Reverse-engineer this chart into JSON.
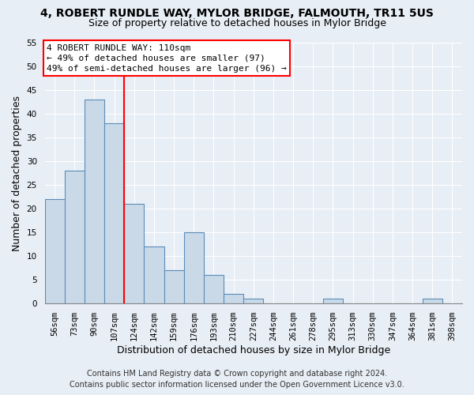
{
  "title": "4, ROBERT RUNDLE WAY, MYLOR BRIDGE, FALMOUTH, TR11 5US",
  "subtitle": "Size of property relative to detached houses in Mylor Bridge",
  "xlabel": "Distribution of detached houses by size in Mylor Bridge",
  "ylabel": "Number of detached properties",
  "categories": [
    "56sqm",
    "73sqm",
    "90sqm",
    "107sqm",
    "124sqm",
    "142sqm",
    "159sqm",
    "176sqm",
    "193sqm",
    "210sqm",
    "227sqm",
    "244sqm",
    "261sqm",
    "278sqm",
    "295sqm",
    "313sqm",
    "330sqm",
    "347sqm",
    "364sqm",
    "381sqm",
    "398sqm"
  ],
  "values": [
    22,
    28,
    43,
    38,
    21,
    12,
    7,
    15,
    6,
    2,
    1,
    0,
    0,
    0,
    1,
    0,
    0,
    0,
    0,
    1,
    0
  ],
  "bar_color": "#c9d9e8",
  "bar_edge_color": "#5b8db8",
  "annotation_title": "4 ROBERT RUNDLE WAY: 110sqm",
  "annotation_line1": "← 49% of detached houses are smaller (97)",
  "annotation_line2": "49% of semi-detached houses are larger (96) →",
  "ylim": [
    0,
    55
  ],
  "yticks": [
    0,
    5,
    10,
    15,
    20,
    25,
    30,
    35,
    40,
    45,
    50,
    55
  ],
  "footer1": "Contains HM Land Registry data © Crown copyright and database right 2024.",
  "footer2": "Contains public sector information licensed under the Open Government Licence v3.0.",
  "bg_color": "#e8eef5",
  "plot_bg_color": "#e8eef5",
  "grid_color": "#ffffff",
  "title_fontsize": 10,
  "subtitle_fontsize": 9,
  "axis_label_fontsize": 9,
  "tick_fontsize": 7.5,
  "annotation_fontsize": 8,
  "footer_fontsize": 7
}
